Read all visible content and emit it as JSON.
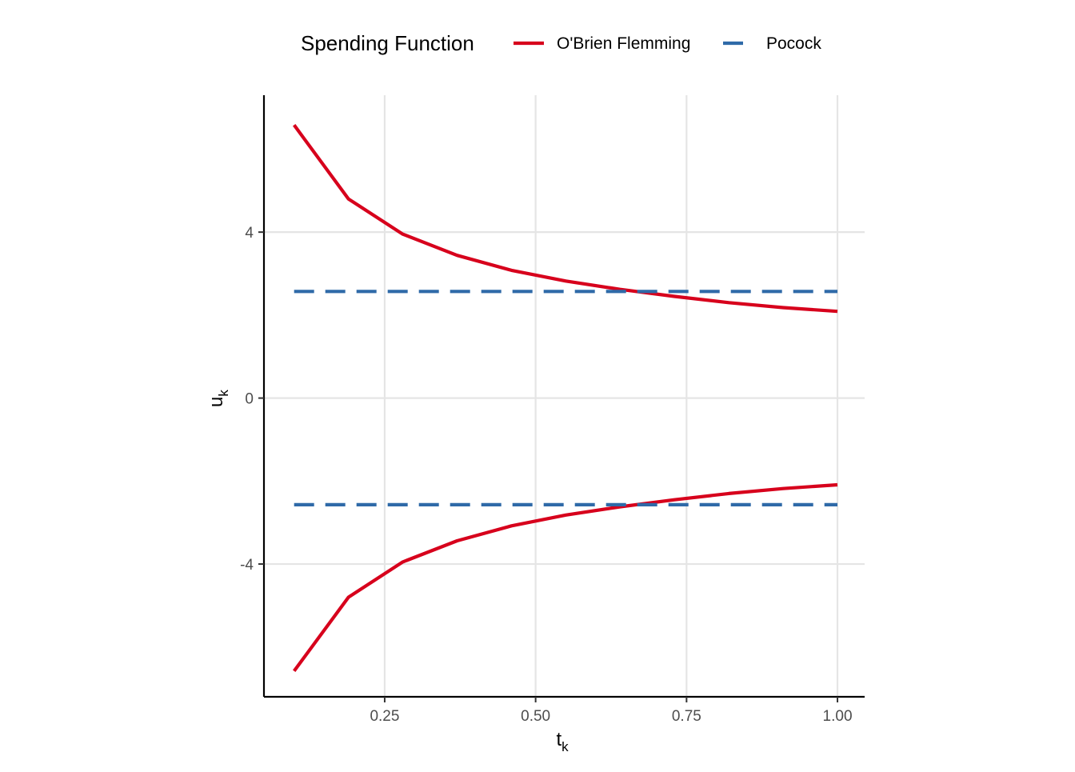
{
  "chart_data": {
    "type": "line",
    "title": "",
    "xlabel": {
      "main": "t",
      "sub": "k"
    },
    "ylabel": {
      "main": "u",
      "sub": "k"
    },
    "xlim": [
      0.05,
      1.045
    ],
    "ylim": [
      -7.2,
      7.3
    ],
    "x_ticks": [
      0.25,
      0.5,
      0.75,
      1.0
    ],
    "x_tick_labels": [
      "0.25",
      "0.50",
      "0.75",
      "1.00"
    ],
    "y_ticks": [
      -4,
      0,
      4
    ],
    "y_tick_labels": [
      "-4",
      "0",
      "4"
    ],
    "grid": true,
    "legend": {
      "title": "Spending Function",
      "position": "top",
      "entries": [
        {
          "name": "O'Brien Flemming",
          "color": "#d7001c",
          "dash": "solid"
        },
        {
          "name": "Pocock",
          "color": "#2f6aa8",
          "dash": "dashed"
        }
      ]
    },
    "series": [
      {
        "name": "O'Brien Flemming",
        "color": "#d7001c",
        "dash": "solid",
        "upper": {
          "x": [
            0.1,
            0.19,
            0.28,
            0.37,
            0.46,
            0.55,
            0.64,
            0.73,
            0.82,
            0.91,
            1.0
          ],
          "y": [
            6.58,
            4.8,
            3.95,
            3.44,
            3.08,
            2.82,
            2.62,
            2.45,
            2.3,
            2.18,
            2.09
          ]
        },
        "lower": {
          "x": [
            0.1,
            0.19,
            0.28,
            0.37,
            0.46,
            0.55,
            0.64,
            0.73,
            0.82,
            0.91,
            1.0
          ],
          "y": [
            -6.58,
            -4.8,
            -3.95,
            -3.44,
            -3.08,
            -2.82,
            -2.62,
            -2.45,
            -2.3,
            -2.18,
            -2.09
          ]
        }
      },
      {
        "name": "Pocock",
        "color": "#2f6aa8",
        "dash": "dashed",
        "upper": {
          "x": [
            0.1,
            1.0
          ],
          "y": [
            2.57,
            2.57
          ]
        },
        "lower": {
          "x": [
            0.1,
            1.0
          ],
          "y": [
            -2.57,
            -2.57
          ]
        }
      }
    ]
  }
}
